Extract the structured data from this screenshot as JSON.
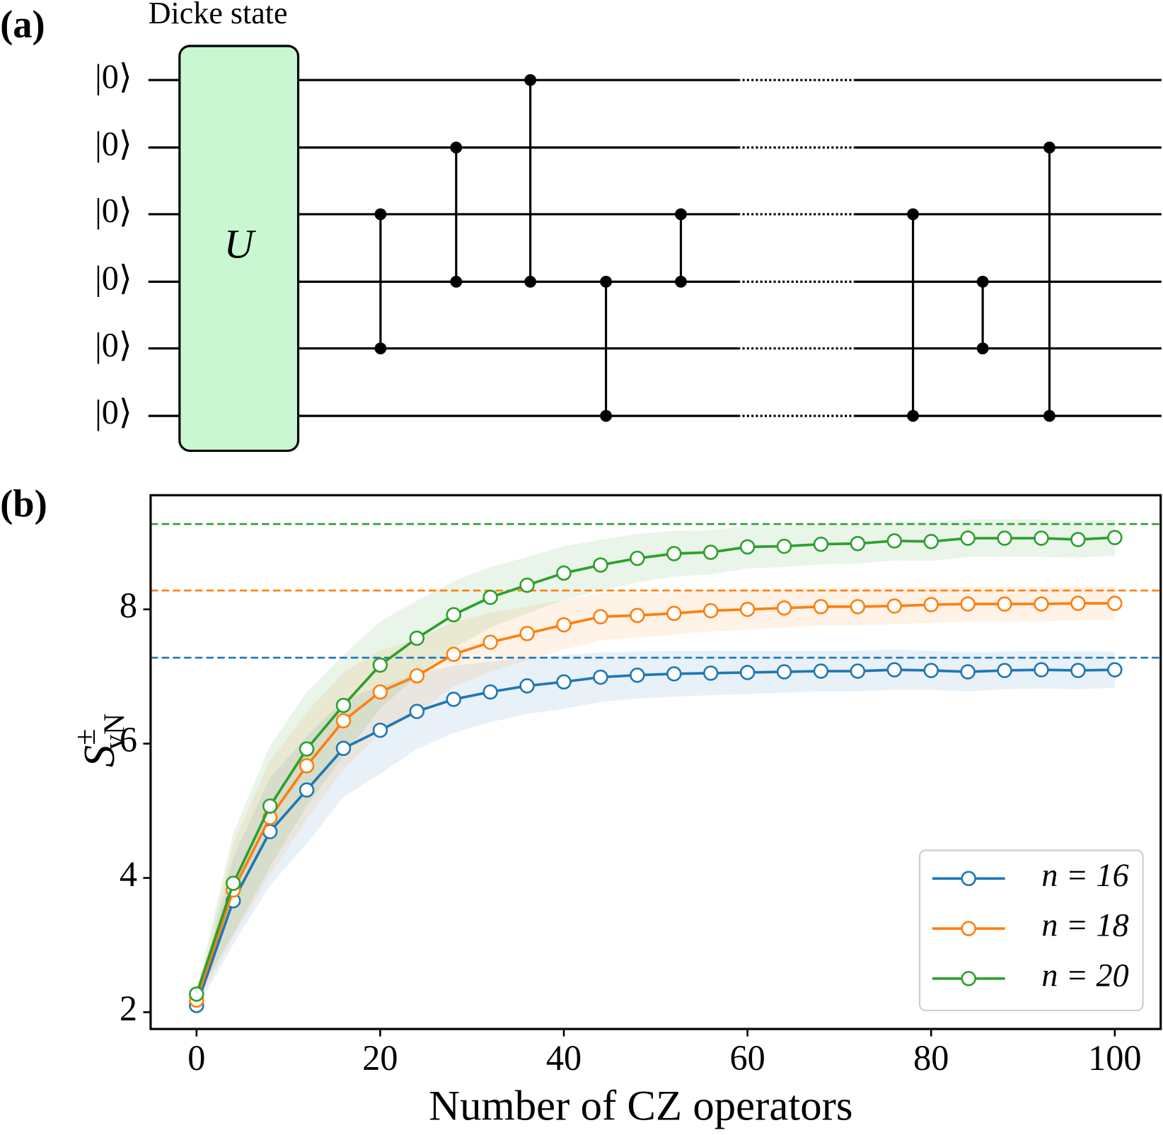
{
  "panel_labels": [
    "(a)",
    "(b)"
  ],
  "circuit": {
    "title": "Dicke state",
    "gate_label": "U",
    "qubits": [
      "|0⟩",
      "|0⟩",
      "|0⟩",
      "|0⟩",
      "|0⟩",
      "|0⟩"
    ]
  },
  "chart_data": {
    "type": "line",
    "x_label": "Number of CZ operators",
    "y_label": {
      "symbol": "S",
      "superscript": "±",
      "subscript": "vN"
    },
    "x": [
      0,
      4,
      8,
      12,
      16,
      20,
      24,
      28,
      32,
      36,
      40,
      44,
      48,
      52,
      56,
      60,
      64,
      68,
      72,
      76,
      80,
      84,
      88,
      92,
      96,
      100
    ],
    "xlim": [
      -5,
      105
    ],
    "xticks": [
      0,
      20,
      40,
      60,
      80,
      100
    ],
    "ylim": [
      1.75,
      9.7
    ],
    "yticks": [
      2,
      4,
      6,
      8
    ],
    "legend": "lower right",
    "series": [
      {
        "name": "n = 16",
        "color": "#1f77b4",
        "reference": 7.28,
        "values": [
          2.1,
          3.66,
          4.69,
          5.31,
          5.93,
          6.2,
          6.48,
          6.66,
          6.77,
          6.86,
          6.92,
          6.99,
          7.02,
          7.04,
          7.05,
          7.06,
          7.07,
          7.08,
          7.08,
          7.1,
          7.09,
          7.07,
          7.09,
          7.1,
          7.09,
          7.1
        ],
        "error": [
          0.05,
          0.65,
          0.8,
          0.8,
          0.72,
          0.65,
          0.56,
          0.5,
          0.45,
          0.42,
          0.4,
          0.37,
          0.35,
          0.34,
          0.33,
          0.32,
          0.31,
          0.3,
          0.3,
          0.3,
          0.29,
          0.29,
          0.28,
          0.28,
          0.28,
          0.27
        ]
      },
      {
        "name": "n = 18",
        "color": "#ff7f0e",
        "reference": 8.28,
        "values": [
          2.18,
          3.82,
          4.9,
          5.67,
          6.34,
          6.77,
          7.01,
          7.33,
          7.51,
          7.64,
          7.77,
          7.89,
          7.91,
          7.94,
          7.98,
          8.0,
          8.02,
          8.04,
          8.04,
          8.05,
          8.07,
          8.08,
          8.08,
          8.08,
          8.09,
          8.09
        ],
        "error": [
          0.05,
          0.7,
          0.85,
          0.8,
          0.72,
          0.62,
          0.55,
          0.48,
          0.44,
          0.4,
          0.37,
          0.35,
          0.33,
          0.32,
          0.31,
          0.3,
          0.29,
          0.28,
          0.28,
          0.27,
          0.27,
          0.26,
          0.26,
          0.26,
          0.25,
          0.25
        ]
      },
      {
        "name": "n = 20",
        "color": "#2ca02c",
        "reference": 9.27,
        "values": [
          2.27,
          3.92,
          5.07,
          5.92,
          6.57,
          7.17,
          7.57,
          7.92,
          8.18,
          8.36,
          8.54,
          8.66,
          8.76,
          8.83,
          8.85,
          8.93,
          8.94,
          8.97,
          8.98,
          9.02,
          9.01,
          9.06,
          9.06,
          9.06,
          9.04,
          9.07
        ],
        "error": [
          0.05,
          0.75,
          0.9,
          0.85,
          0.75,
          0.65,
          0.56,
          0.5,
          0.45,
          0.42,
          0.4,
          0.38,
          0.36,
          0.34,
          0.33,
          0.32,
          0.31,
          0.3,
          0.3,
          0.29,
          0.29,
          0.28,
          0.28,
          0.28,
          0.27,
          0.27
        ]
      }
    ]
  }
}
